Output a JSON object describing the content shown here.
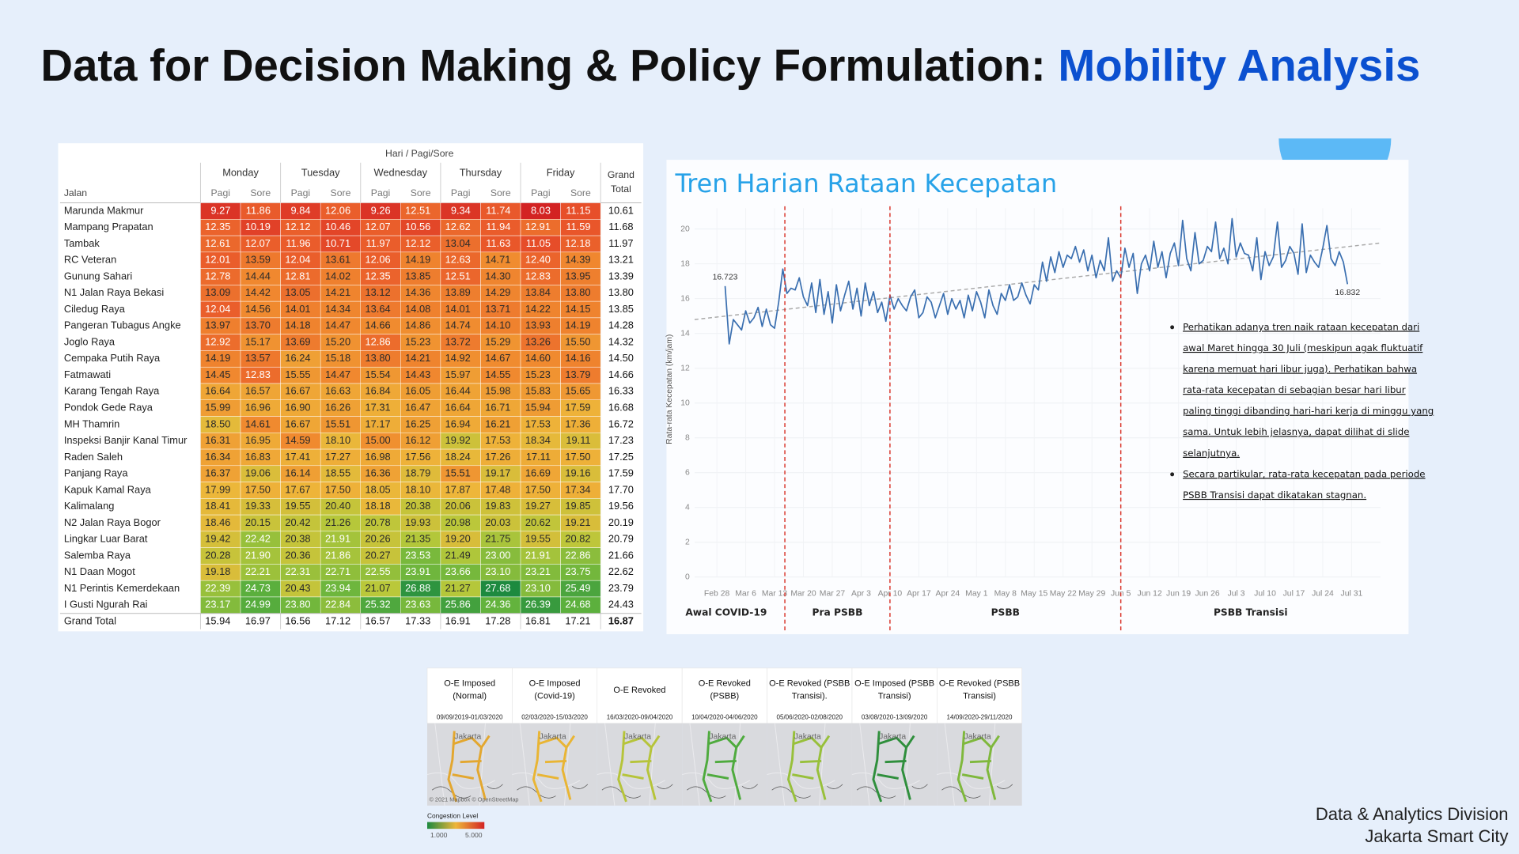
{
  "header": {
    "title_main": "Data for Decision Making & Policy Formulation: ",
    "title_highlight": "Mobility Analysis"
  },
  "table": {
    "super_header": "Hari / Pagi/Sore",
    "road_header": "Jalan",
    "days": [
      "Monday",
      "Tuesday",
      "Wednesday",
      "Thursday",
      "Friday"
    ],
    "periods": [
      "Pagi",
      "Sore"
    ],
    "grand_total_header": [
      "Grand",
      "Total"
    ],
    "color_scale": [
      "#d32323",
      "#e8512a",
      "#f08a2f",
      "#eeb63a",
      "#b9c83a",
      "#62b33d",
      "#1d8a3f"
    ],
    "rows": [
      {
        "road": "Marunda Makmur",
        "cells": [
          "9.27",
          "11.86",
          "9.84",
          "12.06",
          "9.26",
          "12.51",
          "9.34",
          "11.74",
          "8.03",
          "11.15"
        ],
        "total": "10.61"
      },
      {
        "road": "Mampang Prapatan",
        "cells": [
          "12.35",
          "10.19",
          "12.12",
          "10.46",
          "12.07",
          "10.56",
          "12.62",
          "11.94",
          "12.91",
          "11.59"
        ],
        "total": "11.68"
      },
      {
        "road": "Tambak",
        "cells": [
          "12.61",
          "12.07",
          "11.96",
          "10.71",
          "11.97",
          "12.12",
          "13.04",
          "11.63",
          "11.05",
          "12.18"
        ],
        "total": "11.97"
      },
      {
        "road": "RC Veteran",
        "cells": [
          "12.01",
          "13.59",
          "12.04",
          "13.61",
          "12.06",
          "14.19",
          "12.63",
          "14.71",
          "12.40",
          "14.39"
        ],
        "total": "13.21"
      },
      {
        "road": "Gunung Sahari",
        "cells": [
          "12.78",
          "14.44",
          "12.81",
          "14.02",
          "12.35",
          "13.85",
          "12.51",
          "14.30",
          "12.83",
          "13.95"
        ],
        "total": "13.39"
      },
      {
        "road": "N1 Jalan Raya Bekasi",
        "cells": [
          "13.09",
          "14.42",
          "13.05",
          "14.21",
          "13.12",
          "14.36",
          "13.89",
          "14.29",
          "13.84",
          "13.80"
        ],
        "total": "13.80"
      },
      {
        "road": "Ciledug Raya",
        "cells": [
          "12.04",
          "14.56",
          "14.01",
          "14.34",
          "13.64",
          "14.08",
          "14.01",
          "13.71",
          "14.22",
          "14.15"
        ],
        "total": "13.85"
      },
      {
        "road": "Pangeran Tubagus Angke",
        "cells": [
          "13.97",
          "13.70",
          "14.18",
          "14.47",
          "14.66",
          "14.86",
          "14.74",
          "14.10",
          "13.93",
          "14.19"
        ],
        "total": "14.28"
      },
      {
        "road": "Joglo Raya",
        "cells": [
          "12.92",
          "15.17",
          "13.69",
          "15.20",
          "12.86",
          "15.23",
          "13.72",
          "15.29",
          "13.26",
          "15.50"
        ],
        "total": "14.32"
      },
      {
        "road": "Cempaka Putih Raya",
        "cells": [
          "14.19",
          "13.57",
          "16.24",
          "15.18",
          "13.80",
          "14.21",
          "14.92",
          "14.67",
          "14.60",
          "14.16"
        ],
        "total": "14.50"
      },
      {
        "road": "Fatmawati",
        "cells": [
          "14.45",
          "12.83",
          "15.55",
          "14.47",
          "15.54",
          "14.43",
          "15.97",
          "14.55",
          "15.23",
          "13.79"
        ],
        "total": "14.66"
      },
      {
        "road": "Karang Tengah Raya",
        "cells": [
          "16.64",
          "16.57",
          "16.67",
          "16.63",
          "16.84",
          "16.05",
          "16.44",
          "15.98",
          "15.83",
          "15.65"
        ],
        "total": "16.33"
      },
      {
        "road": "Pondok Gede Raya",
        "cells": [
          "15.99",
          "16.96",
          "16.90",
          "16.26",
          "17.31",
          "16.47",
          "16.64",
          "16.71",
          "15.94",
          "17.59"
        ],
        "total": "16.68"
      },
      {
        "road": "MH Thamrin",
        "cells": [
          "18.50",
          "14.61",
          "16.67",
          "15.51",
          "17.17",
          "16.25",
          "16.94",
          "16.21",
          "17.53",
          "17.36"
        ],
        "total": "16.72"
      },
      {
        "road": "Inspeksi Banjir Kanal Timur",
        "cells": [
          "16.31",
          "16.95",
          "14.59",
          "18.10",
          "15.00",
          "16.12",
          "19.92",
          "17.53",
          "18.34",
          "19.11"
        ],
        "total": "17.23"
      },
      {
        "road": "Raden Saleh",
        "cells": [
          "16.34",
          "16.83",
          "17.41",
          "17.27",
          "16.98",
          "17.56",
          "18.24",
          "17.26",
          "17.11",
          "17.50"
        ],
        "total": "17.25"
      },
      {
        "road": "Panjang Raya",
        "cells": [
          "16.37",
          "19.06",
          "16.14",
          "18.55",
          "16.36",
          "18.79",
          "15.51",
          "19.17",
          "16.69",
          "19.16"
        ],
        "total": "17.59"
      },
      {
        "road": "Kapuk Kamal Raya",
        "cells": [
          "17.99",
          "17.50",
          "17.67",
          "17.50",
          "18.05",
          "18.10",
          "17.87",
          "17.48",
          "17.50",
          "17.34"
        ],
        "total": "17.70"
      },
      {
        "road": "Kalimalang",
        "cells": [
          "18.41",
          "19.33",
          "19.55",
          "20.40",
          "18.18",
          "20.38",
          "20.06",
          "19.83",
          "19.27",
          "19.85"
        ],
        "total": "19.56"
      },
      {
        "road": "N2 Jalan Raya Bogor",
        "cells": [
          "18.46",
          "20.15",
          "20.42",
          "21.26",
          "20.78",
          "19.93",
          "20.98",
          "20.03",
          "20.62",
          "19.21"
        ],
        "total": "20.19"
      },
      {
        "road": "Lingkar Luar Barat",
        "cells": [
          "19.42",
          "22.42",
          "20.38",
          "21.91",
          "20.26",
          "21.35",
          "19.20",
          "21.75",
          "19.55",
          "20.82"
        ],
        "total": "20.79"
      },
      {
        "road": "Salemba Raya",
        "cells": [
          "20.28",
          "21.90",
          "20.36",
          "21.86",
          "20.27",
          "23.53",
          "21.49",
          "23.00",
          "21.91",
          "22.86"
        ],
        "total": "21.66"
      },
      {
        "road": "N1 Daan Mogot",
        "cells": [
          "19.18",
          "22.21",
          "22.31",
          "22.71",
          "22.55",
          "23.91",
          "23.66",
          "23.10",
          "23.21",
          "23.75"
        ],
        "total": "22.62"
      },
      {
        "road": "N1 Perintis Kemerdekaan",
        "cells": [
          "22.39",
          "24.73",
          "20.43",
          "23.94",
          "21.07",
          "26.88",
          "21.27",
          "27.68",
          "23.10",
          "25.49"
        ],
        "total": "23.79"
      },
      {
        "road": "I Gusti Ngurah Rai",
        "cells": [
          "23.17",
          "24.99",
          "23.80",
          "22.84",
          "25.32",
          "23.63",
          "25.86",
          "24.36",
          "26.39",
          "24.68"
        ],
        "total": "24.43"
      }
    ],
    "grand_total_row": {
      "road": "Grand Total",
      "cells": [
        "15.94",
        "16.97",
        "16.56",
        "17.12",
        "16.57",
        "17.33",
        "16.91",
        "17.28",
        "16.81",
        "17.21"
      ],
      "total": "16.87"
    }
  },
  "chart_data": {
    "type": "line",
    "title": "Tren Harian Rataan Kecepatan",
    "y_label": "Rata-rata Kecepatan (km/jam)",
    "color": "#3a6fb0",
    "grid": true,
    "xlim": [
      -5.4,
      161
    ],
    "ylim": [
      0,
      21.2
    ],
    "yticks": [
      0,
      2,
      4,
      6,
      8,
      10,
      12,
      14,
      16,
      18,
      20
    ],
    "xticks": [
      {
        "value": 0,
        "label": "Feb 28"
      },
      {
        "value": 7,
        "label": "Mar 6"
      },
      {
        "value": 14,
        "label": "Mar 13"
      },
      {
        "value": 21,
        "label": "Mar 20"
      },
      {
        "value": 28,
        "label": "Mar 27"
      },
      {
        "value": 35,
        "label": "Apr 3"
      },
      {
        "value": 42,
        "label": "Apr 10"
      },
      {
        "value": 49,
        "label": "Apr 17"
      },
      {
        "value": 56,
        "label": "Apr 24"
      },
      {
        "value": 63,
        "label": "May 1"
      },
      {
        "value": 70,
        "label": "May 8"
      },
      {
        "value": 77,
        "label": "May 15"
      },
      {
        "value": 84,
        "label": "May 22"
      },
      {
        "value": 91,
        "label": "May 29"
      },
      {
        "value": 98,
        "label": "Jun 5"
      },
      {
        "value": 105,
        "label": "Jun 12"
      },
      {
        "value": 112,
        "label": "Jun 19"
      },
      {
        "value": 119,
        "label": "Jun 26"
      },
      {
        "value": 126,
        "label": "Jul 3"
      },
      {
        "value": 133,
        "label": "Jul 10"
      },
      {
        "value": 140,
        "label": "Jul 17"
      },
      {
        "value": 147,
        "label": "Jul 24"
      },
      {
        "value": 154,
        "label": "Jul 31"
      }
    ],
    "x": [
      2,
      3,
      4,
      5,
      6,
      7,
      8,
      9,
      10,
      11,
      12,
      13,
      14,
      15,
      16,
      17,
      18,
      19,
      20,
      21,
      22,
      23,
      24,
      25,
      26,
      27,
      28,
      29,
      30,
      31,
      32,
      33,
      34,
      35,
      36,
      37,
      38,
      39,
      40,
      41,
      42,
      43,
      44,
      45,
      46,
      47,
      48,
      49,
      50,
      51,
      52,
      53,
      54,
      55,
      56,
      57,
      58,
      59,
      60,
      61,
      62,
      63,
      64,
      65,
      66,
      67,
      68,
      69,
      70,
      71,
      72,
      73,
      74,
      75,
      76,
      77,
      78,
      79,
      80,
      81,
      82,
      83,
      84,
      85,
      86,
      87,
      88,
      89,
      90,
      91,
      92,
      93,
      94,
      95,
      96,
      97,
      98,
      99,
      100,
      101,
      102,
      103,
      104,
      105,
      106,
      107,
      108,
      109,
      110,
      111,
      112,
      113,
      114,
      115,
      116,
      117,
      118,
      119,
      120,
      121,
      122,
      123,
      124,
      125,
      126,
      127,
      128,
      129,
      130,
      131,
      132,
      133,
      134,
      135,
      136,
      137,
      138,
      139,
      140,
      141,
      142,
      143,
      144,
      145,
      146,
      147,
      148,
      149,
      150,
      151,
      152,
      153
    ],
    "values": [
      16.723,
      13.4,
      14.8,
      14.5,
      14.2,
      15.3,
      14.6,
      14.9,
      15.5,
      14.4,
      15.4,
      14.5,
      14.3,
      15.8,
      17.7,
      16.3,
      16.6,
      16.5,
      17.2,
      16.1,
      15.6,
      16.9,
      15.2,
      17.1,
      15.1,
      16.4,
      14.6,
      16.8,
      15.3,
      16.2,
      17.0,
      15.4,
      16.6,
      15.0,
      16.9,
      15.6,
      16.4,
      15.2,
      15.8,
      14.7,
      16.2,
      15.4,
      16.0,
      15.6,
      15.3,
      16.1,
      16.5,
      14.9,
      15.2,
      16.1,
      15.8,
      14.9,
      15.6,
      16.3,
      15.1,
      16.0,
      15.4,
      15.9,
      14.9,
      16.2,
      15.3,
      16.4,
      15.8,
      14.9,
      16.5,
      15.6,
      15.1,
      16.3,
      15.9,
      16.8,
      15.9,
      16.1,
      16.9,
      16.2,
      15.7,
      16.8,
      16.5,
      18.1,
      17.0,
      18.4,
      17.5,
      18.7,
      17.8,
      18.5,
      18.3,
      19.0,
      18.1,
      18.8,
      17.6,
      18.5,
      17.2,
      18.2,
      17.6,
      19.5,
      17.0,
      17.6,
      17.2,
      18.9,
      17.8,
      18.6,
      16.3,
      18.0,
      18.5,
      17.6,
      19.3,
      17.8,
      18.7,
      17.2,
      18.6,
      19.2,
      17.9,
      20.5,
      18.3,
      17.6,
      19.8,
      18.0,
      18.2,
      19.0,
      18.7,
      20.4,
      18.3,
      18.9,
      18.0,
      20.6,
      18.4,
      19.2,
      18.6,
      18.5,
      17.6,
      19.5,
      17.1,
      18.7,
      17.9,
      18.4,
      20.4,
      17.8,
      18.2,
      19.0,
      18.6,
      17.4,
      20.3,
      17.5,
      18.5,
      18.1,
      17.8,
      18.9,
      20.2,
      18.3,
      17.9,
      18.7,
      18.1,
      16.832
    ],
    "annotations": [
      "16.723",
      "16.832"
    ],
    "trend": {
      "x": [
        -5.4,
        161
      ],
      "values": [
        14.8,
        19.2
      ],
      "color": "#a9a9a9"
    },
    "phase_lines": {
      "x": [
        16.5,
        42,
        98
      ],
      "color": "#d9352b"
    },
    "phases": [
      "Awal COVID-19",
      "Pra PSBB",
      "PSBB",
      "PSBB Transisi"
    ],
    "bullets": [
      [
        "Perhatikan adanya tren naik rataan kecepatan dari",
        "awal Maret hingga 30 Juli (meskipun agak fluktuatif",
        "karena memuat hari libur juga). Perhatikan bahwa",
        "rata-rata kecepatan di sebagian besar hari libur",
        "paling tinggi dibanding hari-hari kerja di minggu yang",
        "sama. Untuk lebih jelasnya, dapat dilihat di slide",
        "selanjutnya."
      ],
      [
        "Secara partikular, rata-rata kecepatan pada periode",
        "PSBB Transisi dapat dikatakan stagnan."
      ]
    ]
  },
  "maps": {
    "panels": [
      {
        "title": [
          "O-E Imposed",
          "(Normal)"
        ],
        "dates": "09/09/2019-01/03/2020",
        "road_color": "#e3a72f"
      },
      {
        "title": [
          "O-E Imposed",
          "(Covid-19)"
        ],
        "dates": "02/03/2020-15/03/2020",
        "road_color": "#e9b534"
      },
      {
        "title": [
          "O-E Revoked"
        ],
        "dates": "16/03/2020-09/04/2020",
        "road_color": "#b6c43a"
      },
      {
        "title": [
          "O-E Revoked",
          "(PSBB)"
        ],
        "dates": "10/04/2020-04/06/2020",
        "road_color": "#4fab3e"
      },
      {
        "title": [
          "O-E Revoked (PSBB",
          "Transisi)."
        ],
        "dates": "05/06/2020-02/08/2020",
        "road_color": "#98c03b"
      },
      {
        "title": [
          "O-E Imposed (PSBB",
          "Transisi)"
        ],
        "dates": "03/08/2020-13/09/2020",
        "road_color": "#2f8f3c"
      },
      {
        "title": [
          "O-E Revoked (PSBB",
          "Transisi)"
        ],
        "dates": "14/09/2020-29/11/2020",
        "road_color": "#7fb83c"
      }
    ],
    "city_label": "Jakarta",
    "credit": "© 2021 Mapbox © OpenStreetMap",
    "legend": {
      "title": "Congestion Level",
      "min_label": "1.000",
      "max_label": "5.000",
      "colors": [
        "#1d8a3f",
        "#eeb63a",
        "#d32323"
      ]
    }
  },
  "footer": {
    "line1": "Data & Analytics Division",
    "line2": "Jakarta Smart City"
  }
}
